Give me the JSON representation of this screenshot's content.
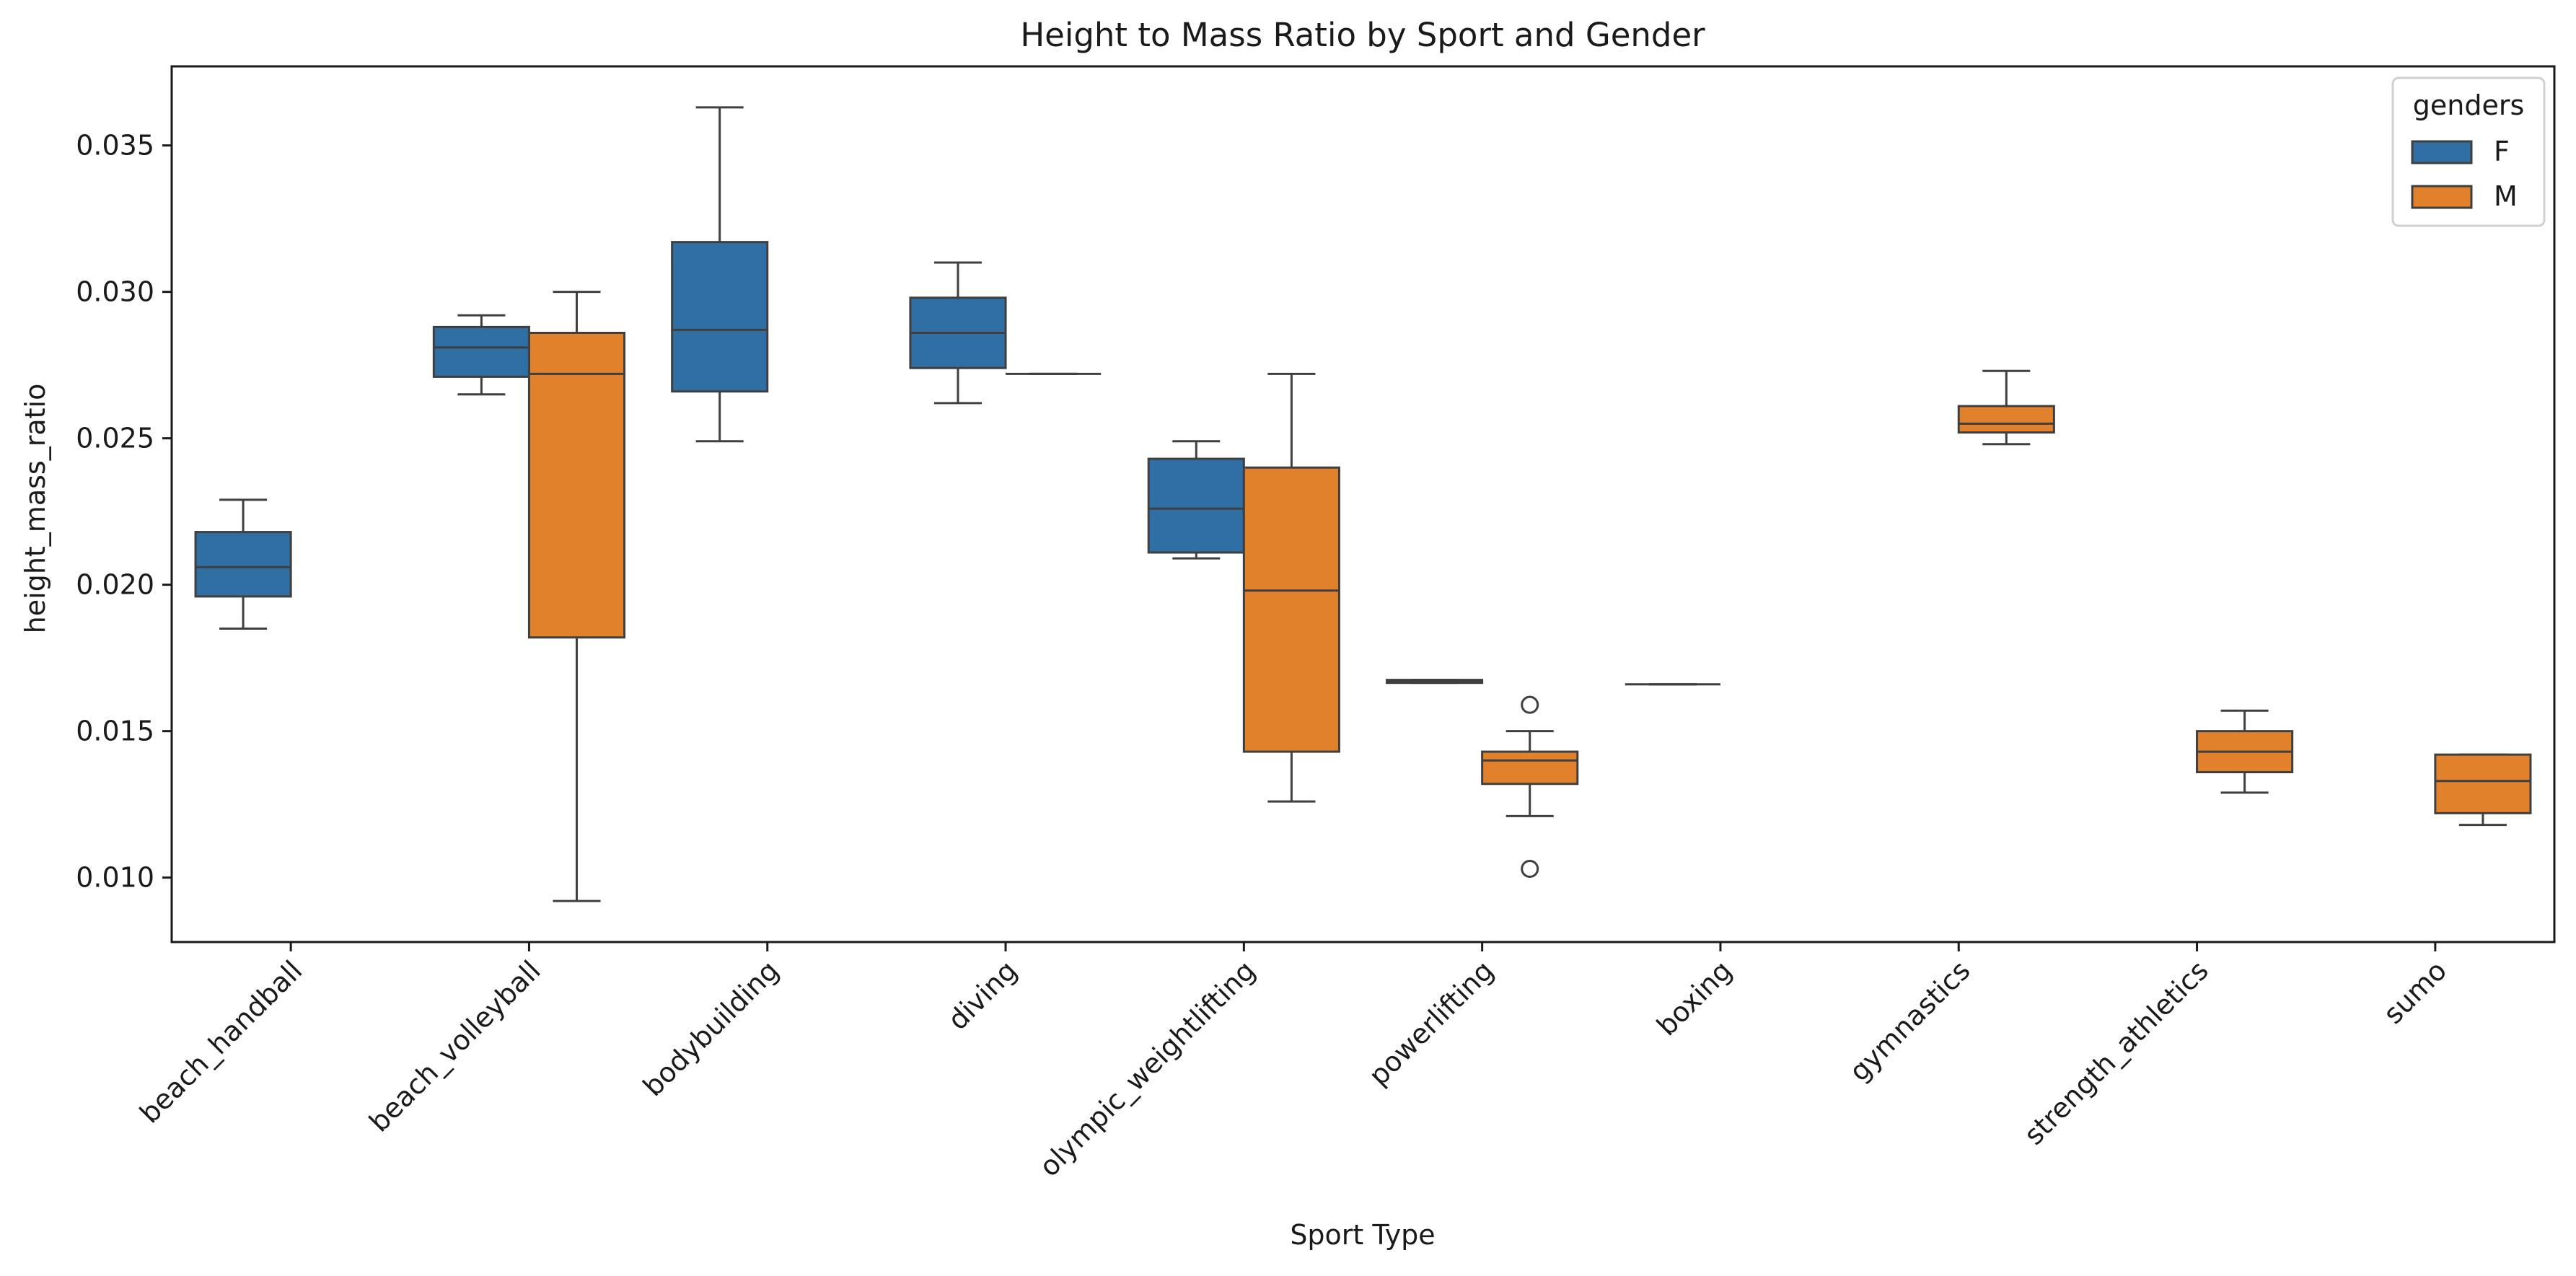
{
  "chart_data": {
    "type": "box",
    "title": "Height to Mass Ratio by Sport and Gender",
    "xlabel": "Sport Type",
    "ylabel": "height_mass_ratio",
    "ylim": [
      0.0078,
      0.0377
    ],
    "yticks": [
      0.01,
      0.015,
      0.02,
      0.025,
      0.03,
      0.035
    ],
    "ytick_labels": [
      "0.010",
      "0.015",
      "0.020",
      "0.025",
      "0.030",
      "0.035"
    ],
    "grid": false,
    "legend": {
      "title": "genders",
      "placement": "top-right",
      "entries": [
        "F",
        "M"
      ]
    },
    "categories": [
      "beach_handball",
      "beach_volleyball",
      "bodybuilding",
      "diving",
      "olympic_weightlifting",
      "powerlifting",
      "boxing",
      "gymnastics",
      "strength_athletics",
      "sumo"
    ],
    "series": [
      {
        "name": "F",
        "color": "#2f6fa3",
        "boxes": [
          {
            "category": "beach_handball",
            "whislo": 0.0185,
            "q1": 0.0196,
            "med": 0.0206,
            "q3": 0.0218,
            "whishi": 0.0229,
            "fliers": []
          },
          {
            "category": "beach_volleyball",
            "whislo": 0.0265,
            "q1": 0.0271,
            "med": 0.0281,
            "q3": 0.0288,
            "whishi": 0.0292,
            "fliers": []
          },
          {
            "category": "bodybuilding",
            "whislo": 0.0249,
            "q1": 0.0266,
            "med": 0.0287,
            "q3": 0.0317,
            "whishi": 0.0363,
            "fliers": []
          },
          {
            "category": "diving",
            "whislo": 0.0262,
            "q1": 0.0274,
            "med": 0.0286,
            "q3": 0.0298,
            "whishi": 0.031,
            "fliers": []
          },
          {
            "category": "olympic_weightlifting",
            "whislo": 0.0209,
            "q1": 0.0211,
            "med": 0.0226,
            "q3": 0.0243,
            "whishi": 0.0249,
            "fliers": []
          },
          {
            "category": "powerlifting",
            "whislo": 0.01665,
            "q1": 0.01665,
            "med": 0.0167,
            "q3": 0.01675,
            "whishi": 0.01675,
            "fliers": []
          },
          {
            "category": "boxing",
            "whislo": 0.0166,
            "q1": 0.0166,
            "med": 0.0166,
            "q3": 0.0166,
            "whishi": 0.0166,
            "fliers": []
          }
        ]
      },
      {
        "name": "M",
        "color": "#e1812c",
        "boxes": [
          {
            "category": "beach_volleyball",
            "whislo": 0.0092,
            "q1": 0.0182,
            "med": 0.0272,
            "q3": 0.0286,
            "whishi": 0.03,
            "fliers": []
          },
          {
            "category": "diving",
            "whislo": 0.0272,
            "q1": 0.0272,
            "med": 0.0272,
            "q3": 0.0272,
            "whishi": 0.0272,
            "fliers": []
          },
          {
            "category": "olympic_weightlifting",
            "whislo": 0.0126,
            "q1": 0.0143,
            "med": 0.0198,
            "q3": 0.024,
            "whishi": 0.0272,
            "fliers": []
          },
          {
            "category": "powerlifting",
            "whislo": 0.0121,
            "q1": 0.0132,
            "med": 0.014,
            "q3": 0.0143,
            "whishi": 0.015,
            "fliers": [
              0.0159,
              0.0103
            ]
          },
          {
            "category": "gymnastics",
            "whislo": 0.0248,
            "q1": 0.0252,
            "med": 0.0255,
            "q3": 0.0261,
            "whishi": 0.0273,
            "fliers": []
          },
          {
            "category": "strength_athletics",
            "whislo": 0.0129,
            "q1": 0.0136,
            "med": 0.0143,
            "q3": 0.015,
            "whishi": 0.0157,
            "fliers": []
          },
          {
            "category": "sumo",
            "whislo": 0.0118,
            "q1": 0.0122,
            "med": 0.0133,
            "q3": 0.0142,
            "whishi": 0.0142,
            "fliers": []
          }
        ]
      }
    ]
  }
}
